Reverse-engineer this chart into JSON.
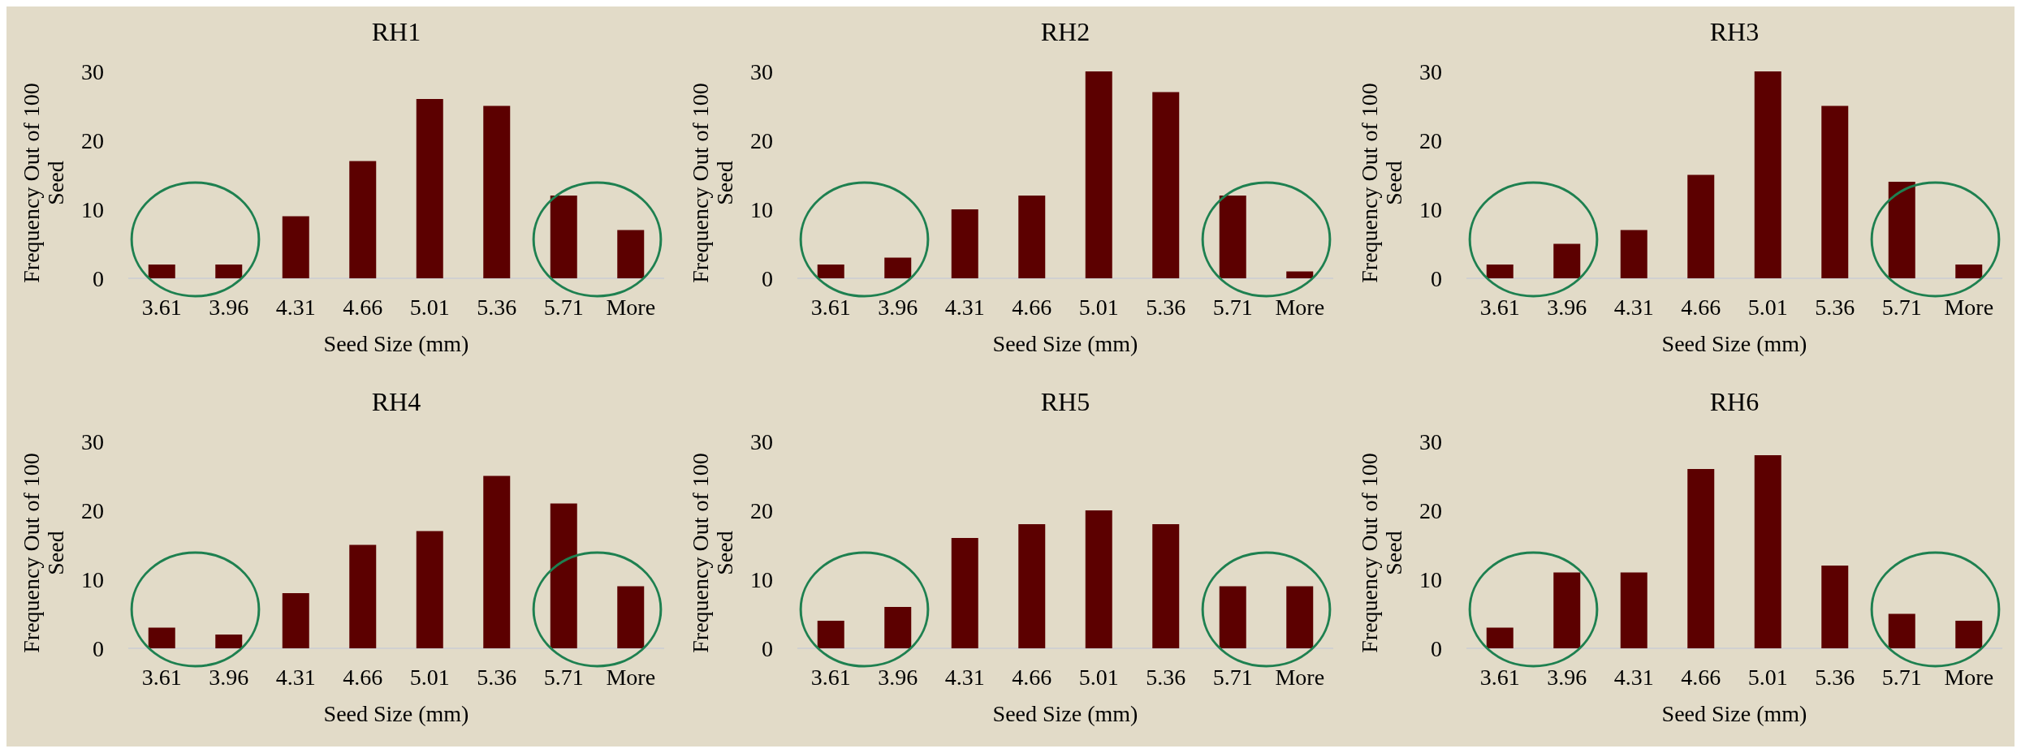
{
  "chart_data": [
    {
      "type": "bar",
      "title": "RH1",
      "xlabel": "Seed Size (mm)",
      "ylabel": "Frequency Out of 100 Seed",
      "categories": [
        "3.61",
        "3.96",
        "4.31",
        "4.66",
        "5.01",
        "5.36",
        "5.71",
        "More"
      ],
      "values": [
        2,
        2,
        9,
        17,
        26,
        25,
        12,
        7
      ],
      "color": "#5c0000",
      "ylim": [
        0,
        30
      ],
      "yticks": [
        0,
        10,
        20,
        30
      ]
    },
    {
      "type": "bar",
      "title": "RH2",
      "xlabel": "Seed Size (mm)",
      "ylabel": "Frequency Out of 100 Seed",
      "categories": [
        "3.61",
        "3.96",
        "4.31",
        "4.66",
        "5.01",
        "5.36",
        "5.71",
        "More"
      ],
      "values": [
        2,
        3,
        10,
        12,
        30,
        27,
        12,
        1
      ],
      "color": "#5c0000",
      "ylim": [
        0,
        30
      ],
      "yticks": [
        0,
        10,
        20,
        30
      ]
    },
    {
      "type": "bar",
      "title": "RH3",
      "xlabel": "Seed Size (mm)",
      "ylabel": "Frequency Out of 100 Seed",
      "categories": [
        "3.61",
        "3.96",
        "4.31",
        "4.66",
        "5.01",
        "5.36",
        "5.71",
        "More"
      ],
      "values": [
        2,
        5,
        7,
        15,
        30,
        25,
        14,
        2
      ],
      "color": "#5c0000",
      "ylim": [
        0,
        30
      ],
      "yticks": [
        0,
        10,
        20,
        30
      ]
    },
    {
      "type": "bar",
      "title": "RH4",
      "xlabel": "Seed Size (mm)",
      "ylabel": "Frequency Out of 100 Seed",
      "categories": [
        "3.61",
        "3.96",
        "4.31",
        "4.66",
        "5.01",
        "5.36",
        "5.71",
        "More"
      ],
      "values": [
        3,
        2,
        8,
        15,
        17,
        25,
        21,
        9
      ],
      "color": "#5c0000",
      "ylim": [
        0,
        30
      ],
      "yticks": [
        0,
        10,
        20,
        30
      ]
    },
    {
      "type": "bar",
      "title": "RH5",
      "xlabel": "Seed Size (mm)",
      "ylabel": "Frequency Out of 100 Seed",
      "categories": [
        "3.61",
        "3.96",
        "4.31",
        "4.66",
        "5.01",
        "5.36",
        "5.71",
        "More"
      ],
      "values": [
        4,
        6,
        16,
        18,
        20,
        18,
        9,
        9
      ],
      "color": "#5c0000",
      "ylim": [
        0,
        30
      ],
      "yticks": [
        0,
        10,
        20,
        30
      ]
    },
    {
      "type": "bar",
      "title": "RH6",
      "xlabel": "Seed Size (mm)",
      "ylabel": "Frequency Out of 100 Seed",
      "categories": [
        "3.61",
        "3.96",
        "4.31",
        "4.66",
        "5.01",
        "5.36",
        "5.71",
        "More"
      ],
      "values": [
        3,
        11,
        11,
        26,
        28,
        12,
        5,
        4
      ],
      "color": "#5c0000",
      "ylim": [
        0,
        30
      ],
      "yticks": [
        0,
        10,
        20,
        30
      ]
    }
  ]
}
